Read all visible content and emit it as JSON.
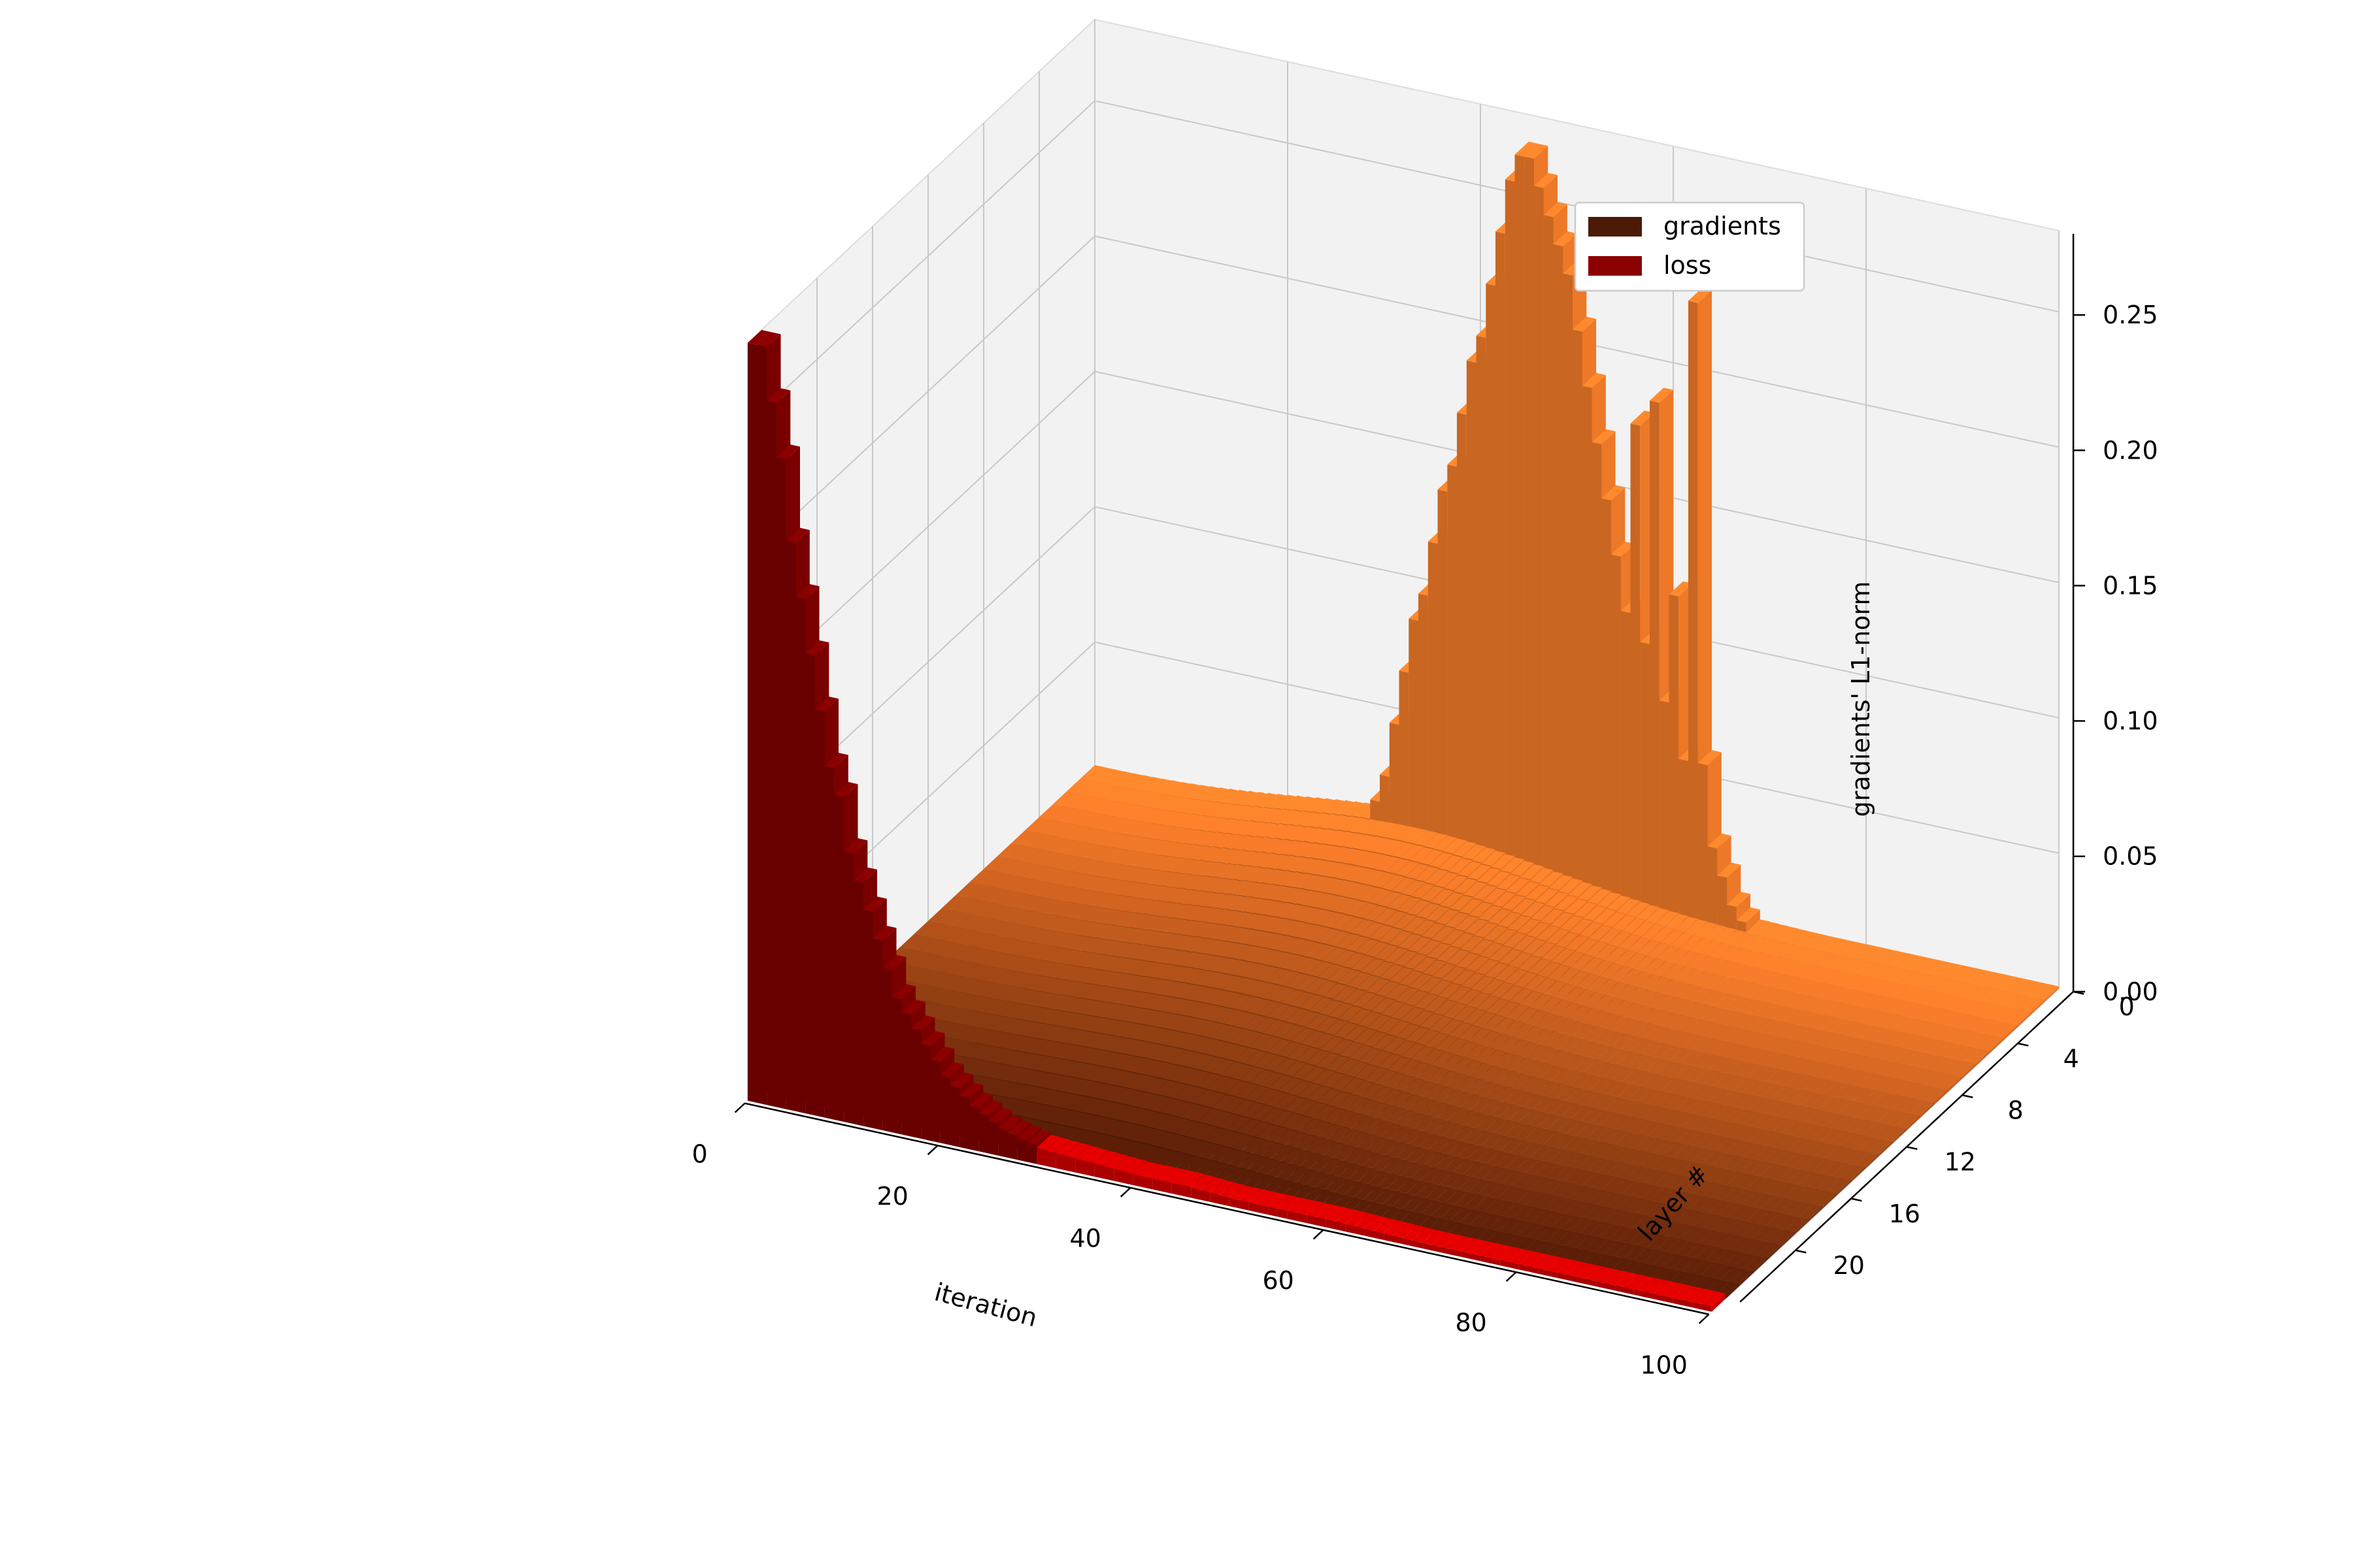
{
  "chart_data": {
    "type": "bar3d",
    "xlabel": "iteration",
    "ylabel": "layer #",
    "zlabel": "gradients' L1-norm",
    "xlim": [
      0,
      100
    ],
    "ylim": [
      0,
      24
    ],
    "zlim": [
      0,
      0.28
    ],
    "x_ticks": [
      "0",
      "20",
      "40",
      "60",
      "80",
      "100"
    ],
    "y_ticks": [
      "0",
      "4",
      "8",
      "12",
      "16",
      "20"
    ],
    "z_ticks": [
      "0.00",
      "0.05",
      "0.10",
      "0.15",
      "0.20",
      "0.25"
    ],
    "grid": true,
    "legend_position": "top-right",
    "series": [
      {
        "name": "gradients",
        "legend_color": "#4a1a06",
        "layers": 24,
        "iterations": 100,
        "peak_layer0": {
          "iterations": [
            30,
            31,
            32,
            33,
            34,
            35,
            36,
            37,
            38,
            39,
            40,
            41,
            42,
            43,
            44,
            45,
            46,
            47,
            48,
            49,
            50,
            51,
            52,
            53,
            54,
            55,
            56,
            57,
            58,
            59,
            60,
            61,
            62,
            63,
            64,
            65,
            66,
            67,
            68
          ],
          "values": [
            0.02,
            0.03,
            0.05,
            0.07,
            0.09,
            0.1,
            0.12,
            0.14,
            0.15,
            0.17,
            0.19,
            0.2,
            0.22,
            0.24,
            0.26,
            0.27,
            0.27,
            0.26,
            0.25,
            0.24,
            0.23,
            0.21,
            0.19,
            0.17,
            0.15,
            0.13,
            0.11,
            0.18,
            0.1,
            0.19,
            0.08,
            0.12,
            0.06,
            0.23,
            0.06,
            0.03,
            0.02,
            0.01,
            0.005
          ]
        },
        "layer_offset_peak": {
          "layers": [
            23
          ],
          "iteration": 1,
          "value": 0.06
        }
      },
      {
        "name": "loss",
        "legend_color": "#8b0000",
        "layer": 24,
        "iterations": [
          0,
          1,
          2,
          3,
          4,
          5,
          6,
          7,
          8,
          9,
          10,
          11,
          12,
          13,
          14,
          15,
          16,
          17,
          18,
          19,
          20,
          21,
          22,
          23,
          24,
          25,
          26,
          27,
          28,
          29,
          30,
          35,
          40,
          45,
          50,
          55,
          60,
          70,
          80,
          90,
          99
        ],
        "values": [
          0.28,
          0.28,
          0.26,
          0.24,
          0.21,
          0.19,
          0.17,
          0.15,
          0.13,
          0.12,
          0.1,
          0.09,
          0.08,
          0.07,
          0.06,
          0.05,
          0.045,
          0.04,
          0.035,
          0.03,
          0.025,
          0.022,
          0.019,
          0.016,
          0.014,
          0.012,
          0.01,
          0.009,
          0.008,
          0.007,
          0.006,
          0.005,
          0.004,
          0.004,
          0.003,
          0.003,
          0.003,
          0.002,
          0.002,
          0.002,
          0.002
        ]
      }
    ]
  }
}
